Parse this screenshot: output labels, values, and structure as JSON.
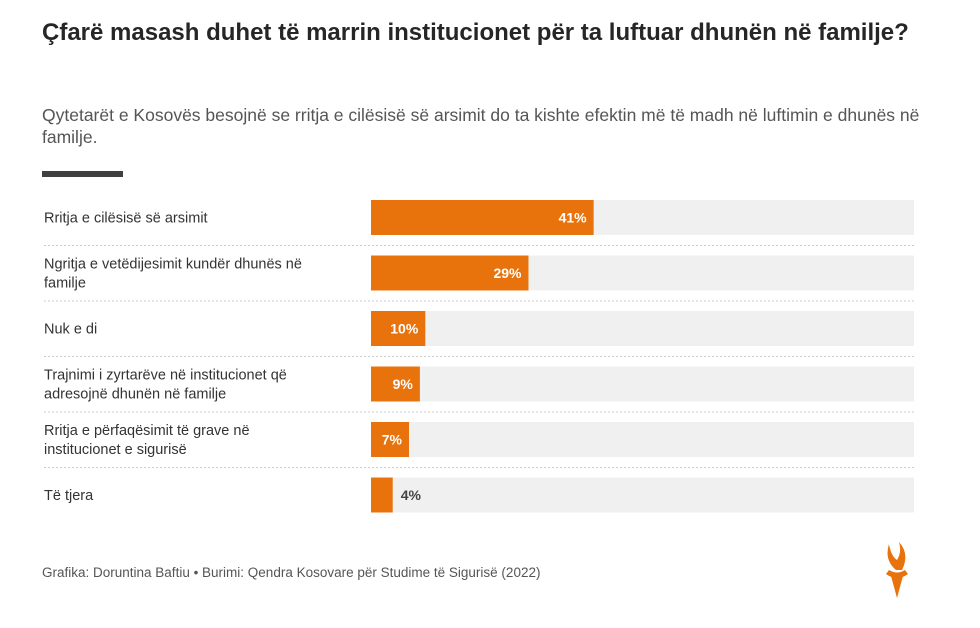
{
  "header": {
    "title": "Çfarë masash duhet të marrin institucionet për ta luftuar dhunën në familje?",
    "subtitle": "Qytetarët e Kosovës besojnë se rritja e cilësisë së arsimit do ta kishte efektin më të madh në luftimin e dhunës në familje."
  },
  "footer": {
    "credit": "Grafika: Doruntina Baftiu • Burimi: Qendra Kosovare për Studime të Sigurisë (2022)"
  },
  "logo": {
    "icon": "torch-logo-icon"
  },
  "colors": {
    "bar": "#e8730c",
    "track": "#f0f0f0",
    "label_inside": "#ffffff",
    "label_outside": "#444444",
    "separator": "#cccccc"
  },
  "chart_data": {
    "type": "bar",
    "orientation": "horizontal",
    "title": "Çfarë masash duhet të marrin institucionet për ta luftuar dhunën në familje?",
    "categories": [
      [
        "Rritja e cilësisë së arsimit"
      ],
      [
        "Ngritja e vetëdijesimit kundër dhunës në",
        "familje"
      ],
      [
        "Nuk e di"
      ],
      [
        "Trajnimi i zyrtarëve në institucionet që",
        "adresojnë dhunën në familje"
      ],
      [
        "Rritja e përfaqësimit të grave në",
        "institucionet e sigurisë"
      ],
      [
        "Të tjera"
      ]
    ],
    "values": [
      41,
      29,
      10,
      9,
      7,
      4
    ],
    "value_labels": [
      "41%",
      "29%",
      "10%",
      "9%",
      "7%",
      "4%"
    ],
    "xlim": [
      0,
      100
    ],
    "unit": "%"
  }
}
